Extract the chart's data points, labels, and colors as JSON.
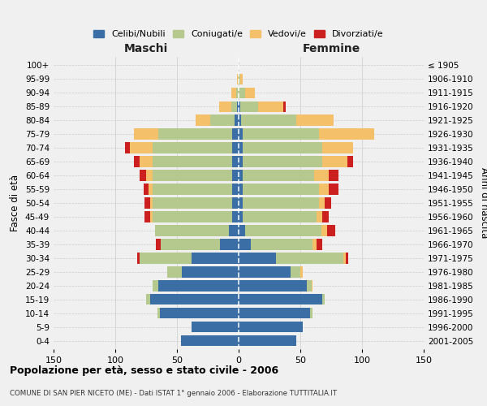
{
  "age_groups": [
    "0-4",
    "5-9",
    "10-14",
    "15-19",
    "20-24",
    "25-29",
    "30-34",
    "35-39",
    "40-44",
    "45-49",
    "50-54",
    "55-59",
    "60-64",
    "65-69",
    "70-74",
    "75-79",
    "80-84",
    "85-89",
    "90-94",
    "95-99",
    "100+"
  ],
  "birth_years": [
    "2001-2005",
    "1996-2000",
    "1991-1995",
    "1986-1990",
    "1981-1985",
    "1976-1980",
    "1971-1975",
    "1966-1970",
    "1961-1965",
    "1956-1960",
    "1951-1955",
    "1946-1950",
    "1941-1945",
    "1936-1940",
    "1931-1935",
    "1926-1930",
    "1921-1925",
    "1916-1920",
    "1911-1915",
    "1906-1910",
    "≤ 1905"
  ],
  "maschi": {
    "celibi": [
      47,
      38,
      64,
      72,
      65,
      46,
      38,
      15,
      8,
      5,
      5,
      5,
      5,
      5,
      5,
      5,
      3,
      1,
      0,
      0,
      0
    ],
    "coniugati": [
      0,
      0,
      2,
      3,
      5,
      12,
      42,
      48,
      60,
      65,
      65,
      65,
      65,
      65,
      65,
      60,
      20,
      5,
      2,
      0,
      0
    ],
    "vedovi": [
      0,
      0,
      0,
      0,
      0,
      0,
      0,
      0,
      0,
      2,
      2,
      3,
      5,
      10,
      18,
      20,
      12,
      10,
      4,
      1,
      0
    ],
    "divorziati": [
      0,
      0,
      0,
      0,
      0,
      0,
      2,
      4,
      0,
      4,
      4,
      4,
      5,
      5,
      4,
      0,
      0,
      0,
      0,
      0,
      0
    ]
  },
  "femmine": {
    "nubili": [
      47,
      52,
      58,
      68,
      55,
      42,
      30,
      10,
      5,
      3,
      3,
      3,
      3,
      3,
      3,
      3,
      2,
      1,
      0,
      0,
      0
    ],
    "coniugate": [
      0,
      0,
      2,
      2,
      4,
      8,
      55,
      50,
      62,
      60,
      62,
      62,
      58,
      65,
      65,
      62,
      45,
      15,
      5,
      1,
      0
    ],
    "vedove": [
      0,
      0,
      0,
      0,
      1,
      2,
      2,
      3,
      5,
      5,
      5,
      8,
      12,
      20,
      25,
      45,
      30,
      20,
      8,
      2,
      0
    ],
    "divorziate": [
      0,
      0,
      0,
      0,
      0,
      0,
      2,
      5,
      6,
      5,
      5,
      8,
      8,
      5,
      0,
      0,
      0,
      2,
      0,
      0,
      0
    ]
  },
  "colors": {
    "celibi": "#3A6EA5",
    "coniugati": "#B5C98E",
    "vedovi": "#F5C06A",
    "divorziati": "#CC2020"
  },
  "xlim": 150,
  "title": "Popolazione per età, sesso e stato civile - 2006",
  "subtitle": "COMUNE DI SAN PIER NICETO (ME) - Dati ISTAT 1° gennaio 2006 - Elaborazione TUTTITALIA.IT",
  "legend_labels": [
    "Celibi/Nubili",
    "Coniugati/e",
    "Vedovi/e",
    "Divorziati/e"
  ],
  "ylabel_left": "Fasce di età",
  "ylabel_right": "Anni di nascita",
  "xlabel_maschi": "Maschi",
  "xlabel_femmine": "Femmine",
  "bg_color": "#f0f0f0"
}
